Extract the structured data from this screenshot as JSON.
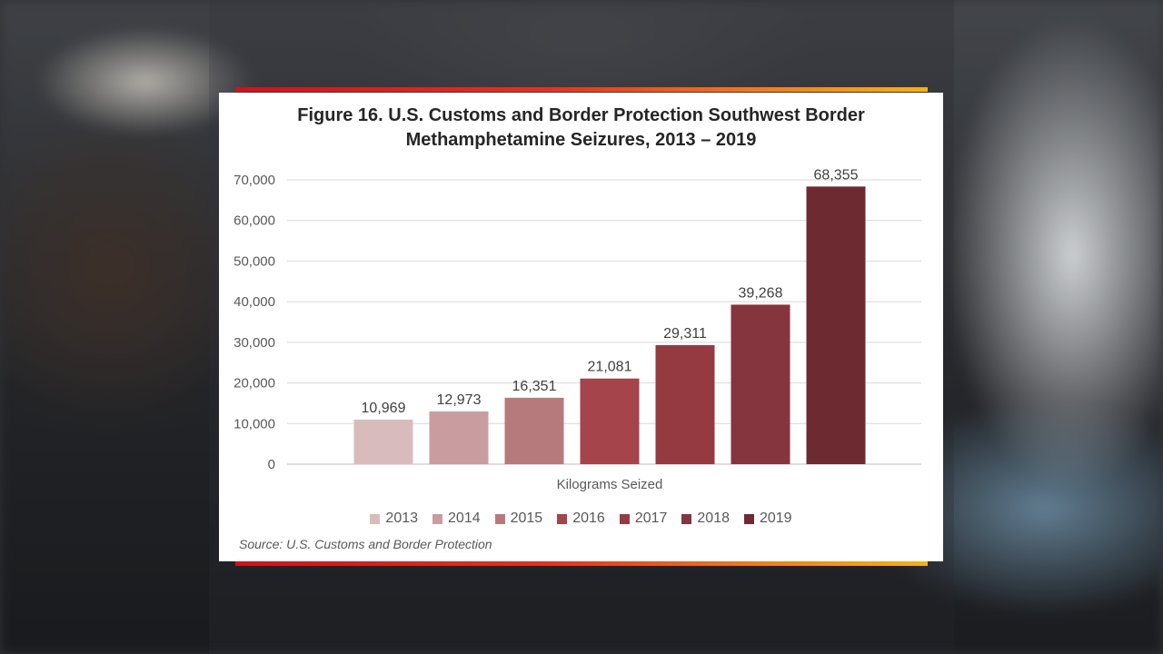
{
  "chart_data": {
    "type": "bar",
    "title_line1": "Figure 16. U.S. Customs and Border Protection Southwest Border",
    "title_line2": "Methamphetamine Seizures, 2013 – 2019",
    "xlabel": "Kilograms Seized",
    "ylabel": "",
    "ylim": [
      0,
      70000
    ],
    "yticks": [
      0,
      10000,
      20000,
      30000,
      40000,
      50000,
      60000,
      70000
    ],
    "ytick_labels": [
      "0",
      "10,000",
      "20,000",
      "30,000",
      "40,000",
      "50,000",
      "60,000",
      "70,000"
    ],
    "grid": true,
    "legend_position": "bottom",
    "series": [
      {
        "name": "2013",
        "value": 10969,
        "label": "10,969",
        "color": "#d8bcbd"
      },
      {
        "name": "2014",
        "value": 12973,
        "label": "12,973",
        "color": "#c99d9f"
      },
      {
        "name": "2015",
        "value": 16351,
        "label": "16,351",
        "color": "#b67a7d"
      },
      {
        "name": "2016",
        "value": 21081,
        "label": "21,081",
        "color": "#a5444b"
      },
      {
        "name": "2017",
        "value": 29311,
        "label": "29,311",
        "color": "#963a42"
      },
      {
        "name": "2018",
        "value": 39268,
        "label": "39,268",
        "color": "#85353d"
      },
      {
        "name": "2019",
        "value": 68355,
        "label": "68,355",
        "color": "#6e2a31"
      }
    ],
    "source": "Source: U.S. Customs and Border Protection"
  }
}
